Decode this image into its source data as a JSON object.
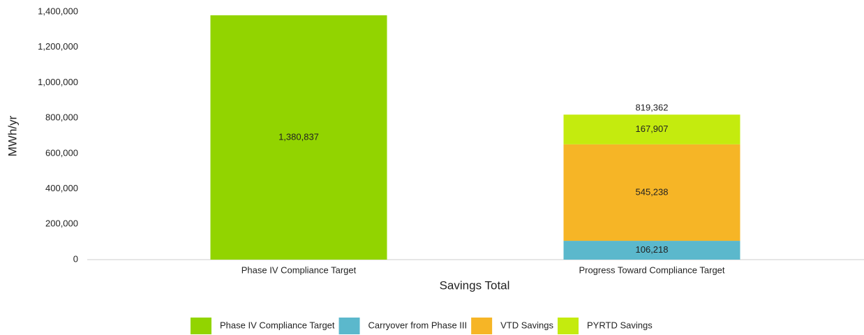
{
  "chart_data": {
    "type": "stacked_bar",
    "x_label": "Savings Total",
    "y_label": "MWh/yr",
    "categories": [
      "Phase IV Compliance Target",
      "Progress Toward Compliance Target"
    ],
    "series": [
      {
        "name": "Phase IV Compliance Target",
        "color": "#92d400",
        "values": [
          1380837,
          null
        ],
        "value_labels": [
          "1,380,837",
          null
        ]
      },
      {
        "name": "Carryover from Phase III",
        "color": "#5bb8cc",
        "values": [
          null,
          106218
        ],
        "value_labels": [
          null,
          "106,218"
        ]
      },
      {
        "name": "VTD Savings",
        "color": "#f6b526",
        "values": [
          null,
          545238
        ],
        "value_labels": [
          null,
          "545,238"
        ]
      },
      {
        "name": "PYRTD Savings",
        "color": "#c4eb0e",
        "values": [
          null,
          167907
        ],
        "value_labels": [
          null,
          "167,907"
        ]
      }
    ],
    "totals": [
      null,
      819362
    ],
    "total_labels": [
      null,
      "819,362"
    ],
    "ylim": [
      0,
      1400000
    ],
    "yticks": [
      0,
      {
        "value": 200000,
        "label": "200,000"
      },
      {
        "value": 400000,
        "label": "400,000"
      },
      {
        "value": 600000,
        "label": "600,000"
      },
      {
        "value": 800000,
        "label": "800,000"
      },
      {
        "value": 1000000,
        "label": "1,000,000"
      },
      {
        "value": 1200000,
        "label": "1,200,000"
      },
      {
        "value": 1400000,
        "label": "1,400,000"
      }
    ],
    "grid": false,
    "legend": "bottom"
  }
}
